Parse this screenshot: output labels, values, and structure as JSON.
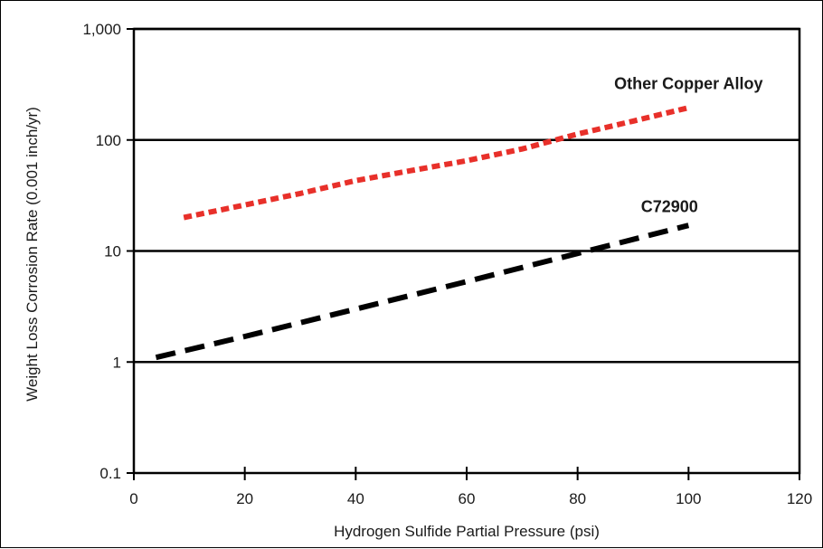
{
  "chart_data": {
    "type": "line",
    "title": "",
    "xlabel": "Hydrogen Sulfide Partial Pressure (psi)",
    "ylabel": "Weight Loss Corrosion Rate (0.001 inch/yr)",
    "xlim": [
      0,
      120
    ],
    "ylim": [
      0.1,
      1000
    ],
    "yscale": "log",
    "x_ticks": [
      0,
      20,
      40,
      60,
      80,
      100,
      120
    ],
    "x_tick_labels": [
      "0",
      "20",
      "40",
      "60",
      "80",
      "100",
      "120"
    ],
    "y_ticks": [
      0.1,
      1,
      10,
      100,
      1000
    ],
    "y_tick_labels": [
      "0.1",
      "1",
      "10",
      "100",
      "1,000"
    ],
    "grid": "horizontal",
    "series": [
      {
        "name": "Other Copper Alloy",
        "color": "#e8302a",
        "line_style": "dashed",
        "x": [
          9,
          20,
          30,
          40,
          50,
          60,
          70,
          80,
          90,
          100
        ],
        "y": [
          20,
          26,
          33,
          43,
          53,
          65,
          83,
          113,
          148,
          195
        ]
      },
      {
        "name": "C72900",
        "color": "#000000",
        "line_style": "dashed",
        "x": [
          0,
          4,
          20,
          40,
          60,
          80,
          100
        ],
        "y": [
          null,
          1.1,
          1.7,
          3.0,
          5.3,
          9.5,
          17
        ]
      }
    ]
  }
}
